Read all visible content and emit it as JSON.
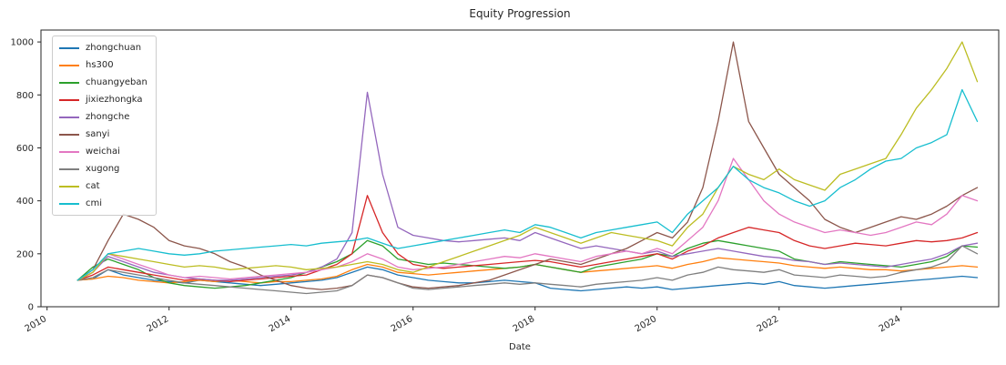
{
  "chart_data": {
    "type": "line",
    "title": "Equity Progression",
    "xlabel": "Date",
    "ylabel": "",
    "legend_position": "upper left",
    "grid": false,
    "xlim": [
      2009.9,
      2025.6
    ],
    "ylim": [
      0,
      1045
    ],
    "xticks": [
      2010,
      2012,
      2014,
      2016,
      2018,
      2020,
      2022,
      2024
    ],
    "yticks": [
      0,
      200,
      400,
      600,
      800,
      1000
    ],
    "x": [
      2010.5,
      2010.75,
      2011,
      2011.25,
      2011.5,
      2011.75,
      2012,
      2012.25,
      2012.5,
      2012.75,
      2013,
      2013.25,
      2013.5,
      2013.75,
      2014,
      2014.25,
      2014.5,
      2014.75,
      2015,
      2015.25,
      2015.5,
      2015.75,
      2016,
      2016.25,
      2016.5,
      2016.75,
      2017,
      2017.25,
      2017.5,
      2017.75,
      2018,
      2018.25,
      2018.5,
      2018.75,
      2019,
      2019.25,
      2019.5,
      2019.75,
      2020,
      2020.25,
      2020.5,
      2020.75,
      2021,
      2021.25,
      2021.5,
      2021.75,
      2022,
      2022.25,
      2022.5,
      2022.75,
      2023,
      2023.25,
      2023.5,
      2023.75,
      2024,
      2024.25,
      2024.5,
      2024.75,
      2025,
      2025.25
    ],
    "series": [
      {
        "name": "zhongchuan",
        "color": "#1f77b4",
        "values": [
          100,
          105,
          140,
          120,
          110,
          100,
          95,
          90,
          100,
          95,
          90,
          85,
          80,
          85,
          90,
          95,
          100,
          110,
          130,
          150,
          140,
          120,
          110,
          100,
          95,
          90,
          90,
          95,
          100,
          95,
          90,
          70,
          65,
          60,
          65,
          70,
          75,
          70,
          75,
          65,
          70,
          75,
          80,
          85,
          90,
          85,
          95,
          80,
          75,
          70,
          75,
          80,
          85,
          90,
          95,
          100,
          105,
          110,
          115,
          110
        ]
      },
      {
        "name": "hs300",
        "color": "#ff7f0e",
        "values": [
          100,
          105,
          115,
          110,
          100,
          95,
          90,
          95,
          100,
          95,
          100,
          95,
          90,
          95,
          95,
          100,
          105,
          115,
          140,
          160,
          150,
          130,
          125,
          120,
          125,
          130,
          135,
          140,
          145,
          150,
          160,
          150,
          140,
          130,
          135,
          140,
          145,
          150,
          155,
          145,
          160,
          170,
          185,
          180,
          175,
          170,
          165,
          155,
          150,
          145,
          150,
          145,
          140,
          140,
          135,
          140,
          145,
          150,
          155,
          150
        ]
      },
      {
        "name": "chuangyeban",
        "color": "#2ca02c",
        "values": [
          100,
          150,
          180,
          160,
          140,
          110,
          90,
          80,
          75,
          70,
          75,
          80,
          90,
          100,
          110,
          130,
          150,
          170,
          200,
          250,
          230,
          180,
          170,
          160,
          165,
          160,
          155,
          150,
          145,
          150,
          160,
          150,
          140,
          130,
          150,
          160,
          170,
          180,
          200,
          190,
          220,
          240,
          250,
          240,
          230,
          220,
          210,
          180,
          170,
          160,
          170,
          165,
          160,
          155,
          150,
          160,
          170,
          190,
          230,
          225
        ]
      },
      {
        "name": "jixiezhongka",
        "color": "#d62728",
        "values": [
          100,
          120,
          150,
          140,
          130,
          120,
          110,
          100,
          105,
          100,
          95,
          100,
          105,
          110,
          115,
          120,
          140,
          160,
          200,
          420,
          280,
          200,
          160,
          150,
          145,
          150,
          155,
          160,
          165,
          170,
          175,
          170,
          160,
          150,
          160,
          170,
          180,
          190,
          200,
          180,
          210,
          230,
          260,
          280,
          300,
          290,
          280,
          250,
          230,
          220,
          230,
          240,
          235,
          230,
          240,
          250,
          245,
          250,
          260,
          280
        ]
      },
      {
        "name": "zhongche",
        "color": "#9467bd",
        "values": [
          100,
          130,
          190,
          170,
          150,
          130,
          120,
          110,
          105,
          100,
          100,
          105,
          110,
          115,
          120,
          130,
          150,
          180,
          280,
          810,
          500,
          300,
          270,
          260,
          250,
          245,
          250,
          255,
          260,
          250,
          280,
          260,
          240,
          220,
          230,
          220,
          210,
          200,
          210,
          190,
          200,
          210,
          220,
          210,
          200,
          190,
          185,
          175,
          170,
          160,
          165,
          160,
          155,
          150,
          160,
          170,
          180,
          200,
          230,
          240
        ]
      },
      {
        "name": "sanyi",
        "color": "#8c564b",
        "values": [
          100,
          140,
          250,
          350,
          330,
          300,
          250,
          230,
          220,
          200,
          170,
          150,
          120,
          100,
          80,
          70,
          65,
          70,
          80,
          120,
          110,
          90,
          75,
          70,
          75,
          80,
          90,
          100,
          120,
          140,
          160,
          180,
          170,
          160,
          180,
          200,
          220,
          250,
          280,
          260,
          320,
          450,
          700,
          1000,
          700,
          600,
          500,
          450,
          400,
          330,
          300,
          280,
          300,
          320,
          340,
          330,
          350,
          380,
          420,
          450
        ]
      },
      {
        "name": "weichai",
        "color": "#e377c2",
        "values": [
          100,
          130,
          200,
          180,
          160,
          140,
          120,
          110,
          115,
          110,
          105,
          110,
          115,
          120,
          125,
          130,
          140,
          150,
          170,
          200,
          180,
          150,
          140,
          145,
          150,
          160,
          170,
          180,
          190,
          185,
          200,
          190,
          180,
          170,
          190,
          200,
          210,
          200,
          220,
          200,
          250,
          300,
          400,
          560,
          480,
          400,
          350,
          320,
          300,
          280,
          290,
          280,
          270,
          280,
          300,
          320,
          310,
          350,
          420,
          400
        ]
      },
      {
        "name": "xugong",
        "color": "#7f7f7f",
        "values": [
          100,
          110,
          140,
          130,
          120,
          110,
          100,
          90,
          85,
          80,
          75,
          70,
          65,
          60,
          55,
          50,
          55,
          60,
          80,
          120,
          110,
          90,
          70,
          65,
          70,
          75,
          80,
          85,
          90,
          85,
          90,
          85,
          80,
          75,
          85,
          90,
          95,
          100,
          110,
          100,
          120,
          130,
          150,
          140,
          135,
          130,
          140,
          120,
          115,
          110,
          120,
          115,
          110,
          115,
          130,
          140,
          150,
          170,
          230,
          200
        ]
      },
      {
        "name": "cat",
        "color": "#bcbd22",
        "values": [
          100,
          130,
          200,
          190,
          180,
          170,
          160,
          150,
          155,
          150,
          140,
          145,
          150,
          155,
          150,
          140,
          145,
          150,
          160,
          170,
          160,
          140,
          130,
          150,
          170,
          190,
          210,
          230,
          250,
          270,
          300,
          280,
          260,
          240,
          260,
          280,
          270,
          260,
          250,
          230,
          300,
          350,
          450,
          530,
          500,
          480,
          520,
          480,
          460,
          440,
          500,
          520,
          540,
          560,
          650,
          750,
          820,
          900,
          1000,
          850
        ]
      },
      {
        "name": "cmi",
        "color": "#17becf",
        "values": [
          100,
          140,
          200,
          210,
          220,
          210,
          200,
          195,
          200,
          210,
          215,
          220,
          225,
          230,
          235,
          230,
          240,
          245,
          250,
          260,
          240,
          220,
          230,
          240,
          250,
          260,
          270,
          280,
          290,
          280,
          310,
          300,
          280,
          260,
          280,
          290,
          300,
          310,
          320,
          280,
          350,
          400,
          450,
          530,
          480,
          450,
          430,
          400,
          380,
          400,
          450,
          480,
          520,
          550,
          560,
          600,
          620,
          650,
          820,
          700
        ]
      }
    ]
  }
}
